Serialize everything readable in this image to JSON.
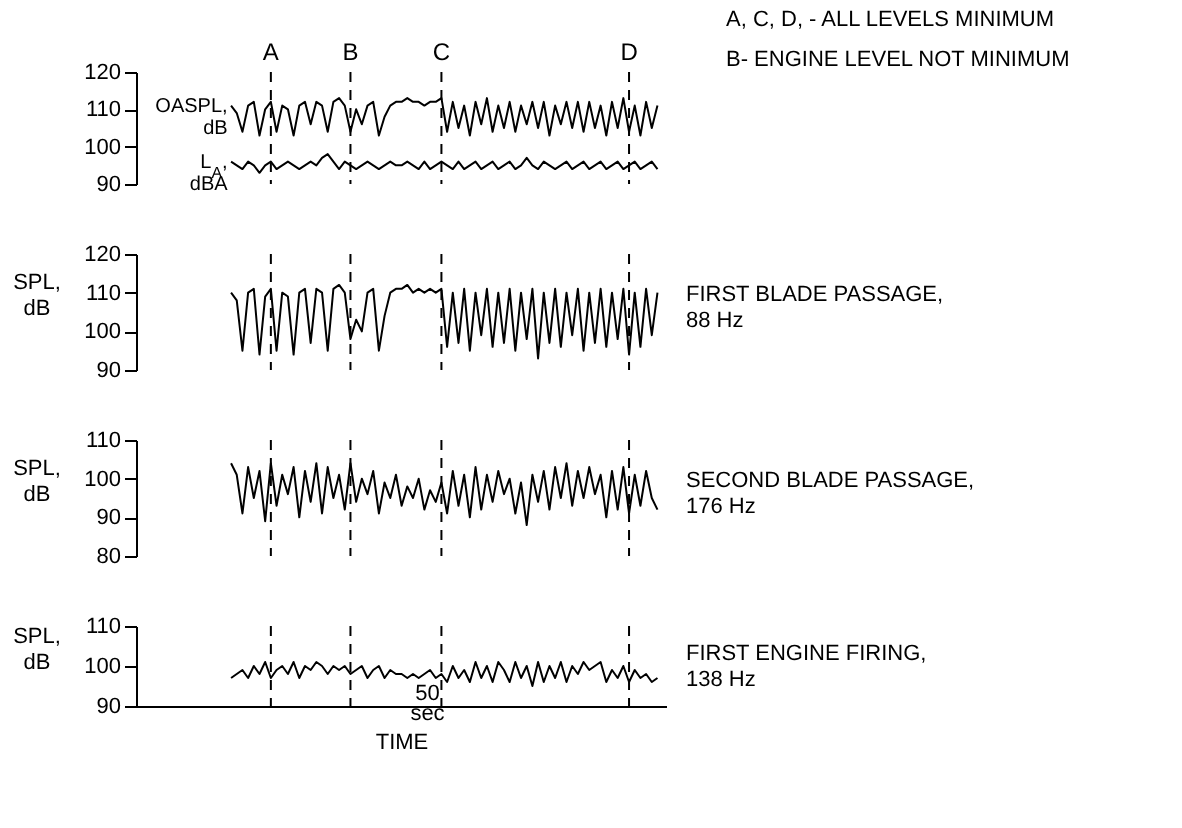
{
  "chart_data": [
    {
      "type": "line",
      "categories": [
        null,
        null,
        null,
        null,
        null,
        null,
        null,
        null,
        null,
        null,
        null,
        null,
        null,
        null,
        null,
        null,
        null,
        null,
        null,
        null,
        null,
        null,
        null,
        null,
        null,
        null,
        null,
        null,
        null,
        null,
        null,
        null,
        null,
        null,
        null,
        null,
        null,
        null,
        null,
        null,
        null,
        null,
        null,
        null,
        null,
        null,
        null,
        null,
        null,
        null,
        null,
        null,
        null,
        null,
        null,
        null,
        null,
        null,
        null,
        null,
        null,
        null,
        null,
        null,
        null,
        null,
        null,
        null,
        null,
        null,
        null,
        null,
        null,
        null,
        null,
        null
      ],
      "ylim": [
        90,
        120
      ],
      "yticks": [
        90,
        100,
        110,
        120
      ],
      "tick_labels": "y",
      "series": [
        {
          "name": "OASPL, dB",
          "color": "#000000",
          "values": [
            111,
            109,
            104,
            111,
            112,
            103,
            110,
            112,
            104,
            111,
            110,
            103,
            111,
            112,
            106,
            112,
            111,
            104,
            112,
            113,
            111,
            104,
            110,
            106,
            111,
            112,
            103,
            108,
            111,
            112,
            112,
            113,
            112,
            112,
            111,
            112,
            112,
            113,
            104,
            112,
            105,
            111,
            103,
            112,
            106,
            113,
            104,
            111,
            105,
            112,
            104,
            111,
            106,
            112,
            105,
            112,
            103,
            111,
            106,
            112,
            105,
            112,
            104,
            112,
            105,
            111,
            103,
            112,
            105,
            113,
            104,
            111,
            103,
            112,
            105,
            111
          ]
        },
        {
          "name": "L$_{A}$, dBA",
          "color": "#000000",
          "values": [
            96,
            95,
            94,
            96,
            95,
            93,
            95,
            96,
            94,
            95,
            96,
            95,
            94,
            95,
            96,
            95,
            97,
            98,
            96,
            94,
            96,
            95,
            94,
            95,
            96,
            95,
            94,
            95,
            96,
            95,
            95,
            96,
            95,
            94,
            96,
            94,
            95,
            96,
            95,
            94,
            96,
            94,
            95,
            96,
            94,
            95,
            96,
            94,
            95,
            96,
            94,
            95,
            97,
            95,
            94,
            96,
            95,
            94,
            95,
            96,
            94,
            95,
            96,
            94,
            95,
            96,
            94,
            95,
            96,
            94,
            95,
            96,
            94,
            95,
            96,
            94
          ]
        }
      ],
      "annotations": [
        "A, C, D, - ALL LEVELS MINIMUM",
        "B- ENGINE LEVEL NOT MINIMUM",
        "A",
        "B",
        "C",
        "D"
      ]
    },
    {
      "type": "line",
      "ylabel": "SPL, dB",
      "categories": [
        null,
        null,
        null,
        null,
        null,
        null,
        null,
        null,
        null,
        null,
        null,
        null,
        null,
        null,
        null,
        null,
        null,
        null,
        null,
        null,
        null,
        null,
        null,
        null,
        null,
        null,
        null,
        null,
        null,
        null,
        null,
        null,
        null,
        null,
        null,
        null,
        null,
        null,
        null,
        null,
        null,
        null,
        null,
        null,
        null,
        null,
        null,
        null,
        null,
        null,
        null,
        null,
        null,
        null,
        null,
        null,
        null,
        null,
        null,
        null,
        null,
        null,
        null,
        null,
        null,
        null,
        null,
        null,
        null,
        null,
        null,
        null,
        null,
        null,
        null,
        null
      ],
      "ylim": [
        90,
        120
      ],
      "yticks": [
        90,
        100,
        110,
        120
      ],
      "tick_labels": "y",
      "series": [
        {
          "name": "FIRST BLADE PASSAGE, 88 Hz",
          "color": "#000000",
          "values": [
            110,
            108,
            95,
            110,
            111,
            94,
            109,
            111,
            95,
            110,
            109,
            94,
            110,
            111,
            97,
            111,
            110,
            95,
            111,
            112,
            110,
            98,
            103,
            100,
            110,
            111,
            95,
            104,
            110,
            111,
            111,
            112,
            110,
            111,
            110,
            111,
            110,
            111,
            96,
            110,
            97,
            111,
            95,
            110,
            99,
            111,
            96,
            110,
            97,
            111,
            95,
            110,
            98,
            111,
            93,
            110,
            97,
            111,
            96,
            110,
            99,
            111,
            95,
            110,
            97,
            111,
            96,
            110,
            98,
            111,
            94,
            110,
            96,
            111,
            99,
            110
          ]
        }
      ]
    },
    {
      "type": "line",
      "ylabel": "SPL, dB",
      "categories": [
        null,
        null,
        null,
        null,
        null,
        null,
        null,
        null,
        null,
        null,
        null,
        null,
        null,
        null,
        null,
        null,
        null,
        null,
        null,
        null,
        null,
        null,
        null,
        null,
        null,
        null,
        null,
        null,
        null,
        null,
        null,
        null,
        null,
        null,
        null,
        null,
        null,
        null,
        null,
        null,
        null,
        null,
        null,
        null,
        null,
        null,
        null,
        null,
        null,
        null,
        null,
        null,
        null,
        null,
        null,
        null,
        null,
        null,
        null,
        null,
        null,
        null,
        null,
        null,
        null,
        null,
        null,
        null,
        null,
        null,
        null,
        null,
        null,
        null,
        null,
        null
      ],
      "ylim": [
        80,
        110
      ],
      "yticks": [
        80,
        90,
        100,
        110
      ],
      "tick_labels": "y",
      "series": [
        {
          "name": "SECOND BLADE PASSAGE, 176 Hz",
          "color": "#000000",
          "values": [
            104,
            101,
            91,
            103,
            95,
            102,
            89,
            104,
            93,
            101,
            96,
            103,
            90,
            102,
            94,
            104,
            91,
            103,
            95,
            101,
            92,
            104,
            94,
            100,
            96,
            102,
            91,
            99,
            95,
            101,
            93,
            98,
            95,
            100,
            92,
            97,
            94,
            99,
            91,
            102,
            93,
            101,
            90,
            103,
            92,
            101,
            94,
            102,
            96,
            100,
            91,
            99,
            88,
            101,
            94,
            102,
            92,
            103,
            95,
            104,
            93,
            102,
            95,
            103,
            96,
            101,
            90,
            102,
            92,
            103,
            91,
            101,
            93,
            102,
            95,
            92
          ]
        }
      ]
    },
    {
      "type": "line",
      "ylabel": "SPL, dB",
      "xlabel": "TIME",
      "categories": [
        null,
        null,
        null,
        null,
        null,
        null,
        null,
        null,
        null,
        null,
        null,
        null,
        null,
        null,
        null,
        null,
        null,
        null,
        null,
        null,
        null,
        null,
        null,
        null,
        null,
        null,
        null,
        null,
        null,
        null,
        null,
        null,
        null,
        null,
        null,
        null,
        null,
        null,
        null,
        null,
        null,
        null,
        null,
        null,
        null,
        null,
        null,
        null,
        null,
        null,
        null,
        null,
        null,
        null,
        null,
        null,
        null,
        null,
        null,
        null,
        null,
        null,
        null,
        null,
        null,
        null,
        null,
        null,
        null,
        null,
        null,
        null,
        null,
        null,
        null,
        null
      ],
      "ylim": [
        90,
        110
      ],
      "yticks": [
        90,
        100,
        110
      ],
      "tick_labels": "y",
      "series": [
        {
          "name": "FIRST ENGINE FIRING, 138 Hz",
          "color": "#000000",
          "values": [
            97,
            98,
            99,
            97,
            100,
            98,
            101,
            97,
            99,
            100,
            98,
            101,
            97,
            100,
            99,
            101,
            100,
            98,
            100,
            99,
            100,
            98,
            99,
            100,
            97,
            99,
            100,
            97,
            99,
            98,
            98,
            97,
            98,
            97,
            98,
            99,
            97,
            98,
            96,
            100,
            97,
            99,
            96,
            101,
            97,
            100,
            96,
            101,
            99,
            96,
            101,
            97,
            100,
            95,
            101,
            96,
            100,
            97,
            101,
            96,
            100,
            98,
            101,
            99,
            100,
            101,
            96,
            99,
            97,
            100,
            96,
            99,
            97,
            98,
            96,
            97
          ]
        }
      ],
      "annotations": [
        "50 sec"
      ]
    }
  ]
}
